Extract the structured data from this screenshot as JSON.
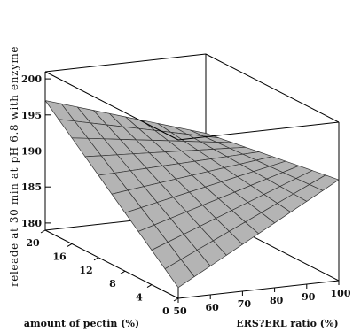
{
  "chart_data": {
    "type": "surface",
    "title": "",
    "zlabel": "releade at 30 min at pH 6.8 with enzyme",
    "xlabel": "ERS?ERL ratio (%)",
    "ylabel": "amount of pectin (%)",
    "x_ticks": [
      "50",
      "60",
      "70",
      "80",
      "90",
      "100"
    ],
    "y_ticks": [
      "0",
      "4",
      "8",
      "12",
      "16",
      "20"
    ],
    "z_ticks": [
      "180",
      "185",
      "190",
      "195",
      "200"
    ],
    "xlim": [
      50,
      100
    ],
    "ylim": [
      0,
      20
    ],
    "zlim": [
      179,
      201
    ],
    "grid_lines": 10,
    "corners": [
      {
        "x": 50,
        "y": 0,
        "z": 180.5
      },
      {
        "x": 100,
        "y": 0,
        "z": 193
      },
      {
        "x": 50,
        "y": 20,
        "z": 197
      },
      {
        "x": 100,
        "y": 20,
        "z": 190
      }
    ],
    "surface_color": "#b4b4b4",
    "grid_color": "#333333"
  }
}
